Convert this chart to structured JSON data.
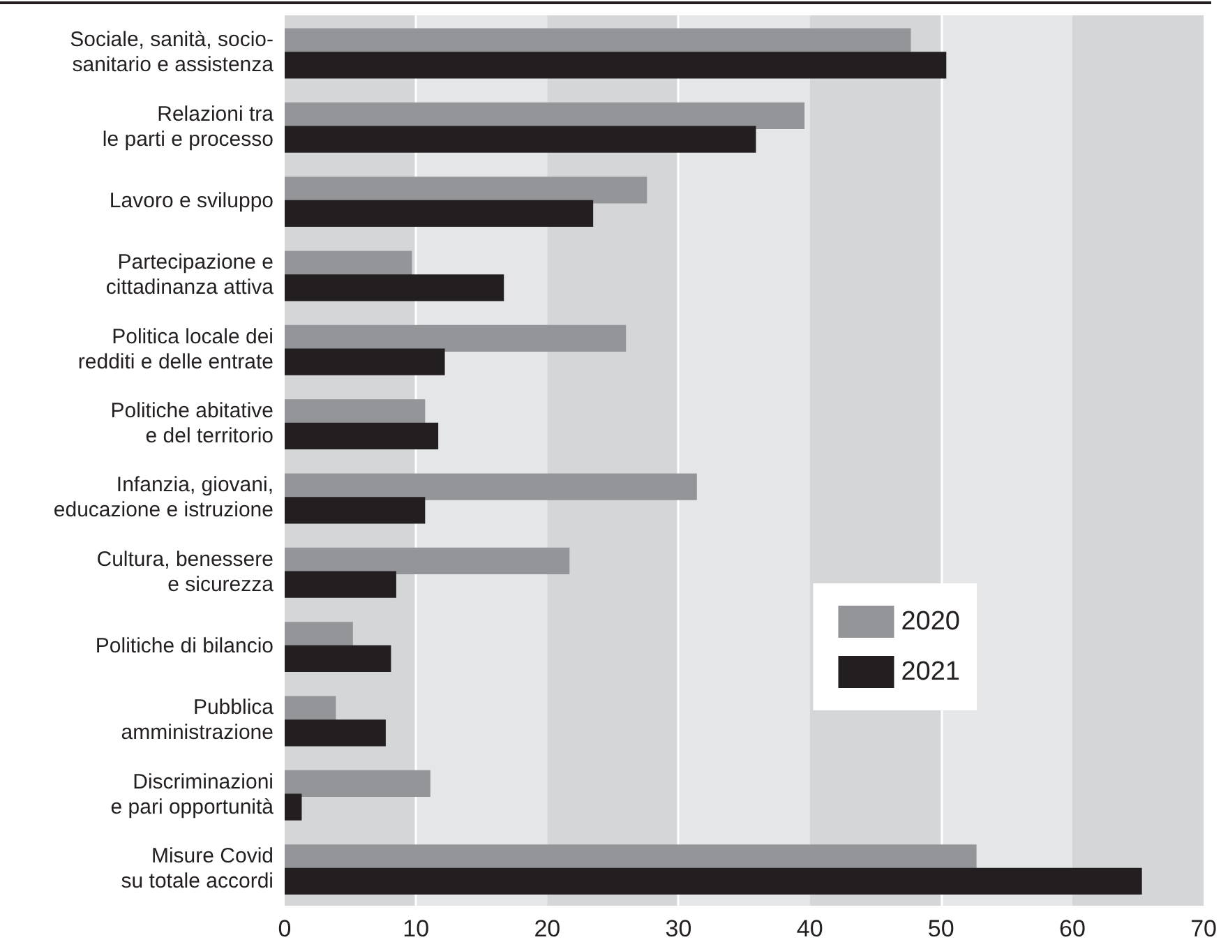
{
  "chart_data": {
    "type": "bar",
    "orientation": "horizontal",
    "categories": [
      "Sociale, sanità, socio-\nsanitario e assistenza",
      "Relazioni tra\nle parti e processo",
      "Lavoro e sviluppo",
      "Partecipazione e\ncittadinanza attiva",
      "Politica locale dei\nredditi e delle entrate",
      "Politiche abitative\ne del territorio",
      "Infanzia, giovani,\neducazione e istruzione",
      "Cultura, benessere\ne sicurezza",
      "Politiche di bilancio",
      "Pubblica\namministrazione",
      "Discriminazioni\ne pari opportunità",
      "Misure Covid\nsu totale accordi"
    ],
    "series": [
      {
        "name": "2020",
        "color": "#939598",
        "values": [
          47.7,
          39.6,
          27.6,
          9.7,
          26.0,
          10.7,
          31.4,
          21.7,
          5.2,
          3.9,
          11.1,
          52.7
        ]
      },
      {
        "name": "2021",
        "color": "#231f20",
        "values": [
          50.4,
          35.9,
          23.5,
          16.7,
          12.2,
          11.7,
          10.7,
          8.5,
          8.1,
          7.7,
          1.3,
          65.3
        ]
      }
    ],
    "xlim": [
      0,
      70
    ],
    "xticks": [
      0,
      10,
      20,
      30,
      40,
      50,
      60,
      70
    ],
    "bands": [
      {
        "axis": "x",
        "from": 0,
        "to": 10,
        "color": "#d5d6d8"
      },
      {
        "axis": "x",
        "from": 10,
        "to": 20,
        "color": "#e5e6e8"
      },
      {
        "axis": "x",
        "from": 20,
        "to": 30,
        "color": "#d5d6d8"
      },
      {
        "axis": "x",
        "from": 30,
        "to": 40,
        "color": "#e5e6e8"
      },
      {
        "axis": "x",
        "from": 40,
        "to": 50,
        "color": "#d5d6d8"
      },
      {
        "axis": "x",
        "from": 50,
        "to": 60,
        "color": "#e5e6e8"
      },
      {
        "axis": "x",
        "from": 60,
        "to": 70,
        "color": "#d5d6d8"
      }
    ],
    "ref_lines": [
      {
        "axis": "x",
        "value": 10,
        "color": "#ffffff"
      },
      {
        "axis": "x",
        "value": 30,
        "color": "#ffffff"
      },
      {
        "axis": "x",
        "value": 50,
        "color": "#ffffff"
      }
    ],
    "legend": "right"
  }
}
